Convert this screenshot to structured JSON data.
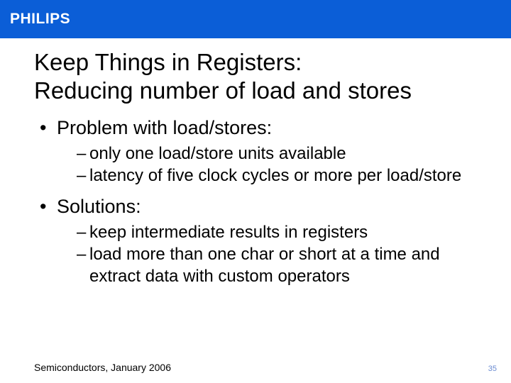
{
  "header": {
    "logo_text": "PHILIPS",
    "bar_color": "#0b5ed7",
    "logo_color": "#ffffff"
  },
  "slide": {
    "title_line1": "Keep Things in Registers:",
    "title_line2": "Reducing number of load and stores",
    "title_fontsize": 33,
    "body_fontsize": 27,
    "sub_fontsize": 24,
    "text_color": "#000000",
    "background_color": "#ffffff",
    "bullets": [
      {
        "text": "Problem with load/stores:",
        "subs": [
          "only one load/store units available",
          "latency of five clock cycles or more per load/store"
        ]
      },
      {
        "text": "Solutions:",
        "subs": [
          "keep intermediate results in registers",
          "load more than one char or short at a time and extract data with custom operators"
        ]
      }
    ]
  },
  "footer": {
    "text": "Semiconductors, January 2006",
    "page_number": "35",
    "footer_fontsize": 14,
    "pagenum_fontsize": 11,
    "pagenum_color": "#6a8bd1"
  }
}
